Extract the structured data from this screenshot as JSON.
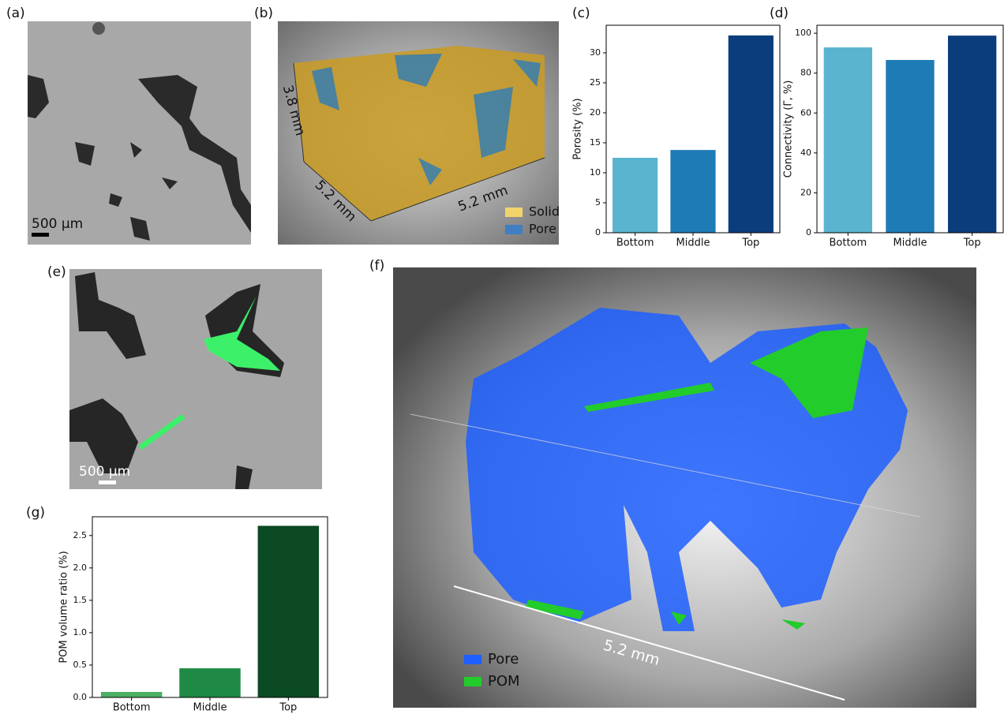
{
  "panels": {
    "labels": [
      "(a)",
      "(b)",
      "(c)",
      "(d)",
      "(e)",
      "(f)",
      "(g)"
    ],
    "a": {
      "scale_bar": "500 µm"
    },
    "b": {
      "dims": [
        "3.8 mm",
        "5.2 mm",
        "5.2 mm"
      ],
      "legend": [
        {
          "name": "Solid",
          "color": "#f2d36b"
        },
        {
          "name": "Pore",
          "color": "#3f7fc1"
        }
      ]
    },
    "e": {
      "scale_bar": "500 µm"
    },
    "f": {
      "dim": "5.2 mm",
      "legend": [
        {
          "name": "Pore",
          "color": "#1f5fff"
        },
        {
          "name": "POM",
          "color": "#22cc2a"
        }
      ]
    }
  },
  "chart_data": [
    {
      "type": "bar",
      "ylabel": "Porosity (%)",
      "categories": [
        "Bottom",
        "Middle",
        "Top"
      ],
      "values": [
        12.5,
        13.8,
        32.9
      ],
      "colors": [
        "#5ab4d0",
        "#1f7bb6",
        "#0b3d7d"
      ],
      "ylim": [
        0,
        34.6
      ],
      "yticks": [
        0,
        5,
        10,
        15,
        20,
        25,
        30
      ]
    },
    {
      "type": "bar",
      "ylabel": "Connectivity (Γ, %)",
      "categories": [
        "Bottom",
        "Middle",
        "Top"
      ],
      "values": [
        92.9,
        86.6,
        98.8
      ],
      "colors": [
        "#5ab4d0",
        "#1f7bb6",
        "#0b3d7d"
      ],
      "ylim": [
        0,
        104
      ],
      "yticks": [
        0,
        20,
        40,
        60,
        80,
        100
      ]
    },
    {
      "type": "bar",
      "ylabel": "POM volume ratio (%)",
      "categories": [
        "Bottom",
        "Middle",
        "Top"
      ],
      "values": [
        0.085,
        0.45,
        2.65
      ],
      "colors": [
        "#4caf64",
        "#1e8a45",
        "#0b4a22"
      ],
      "ylim": [
        0,
        2.79
      ],
      "yticks": [
        {
          "value": 0,
          "label": "0.0"
        },
        0.5,
        {
          "value": 1,
          "label": "1.0"
        },
        1.5,
        {
          "value": 2,
          "label": "2.0"
        },
        2.5
      ]
    }
  ]
}
